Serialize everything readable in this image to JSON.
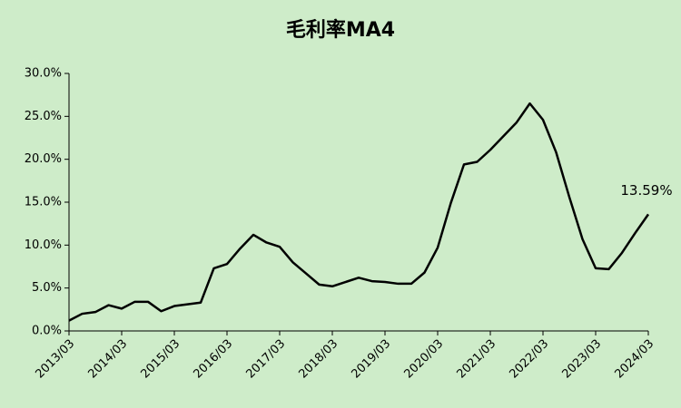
{
  "chart_data": {
    "type": "line",
    "title": "毛利率MA4",
    "categories": [
      "2013/03",
      null,
      null,
      null,
      "2014/03",
      null,
      null,
      null,
      "2015/03",
      null,
      null,
      null,
      "2016/03",
      null,
      null,
      null,
      "2017/03",
      null,
      null,
      null,
      "2018/03",
      null,
      null,
      null,
      "2019/03",
      null,
      null,
      null,
      "2020/03",
      null,
      null,
      null,
      "2021/03",
      null,
      null,
      null,
      "2022/03",
      null,
      null,
      null,
      "2023/03",
      null,
      null,
      null,
      "2024/03"
    ],
    "series": [
      {
        "color": "#000000",
        "values": [
          1.2,
          2.0,
          2.2,
          3.0,
          2.6,
          3.4,
          3.4,
          2.3,
          2.9,
          3.1,
          3.3,
          7.3,
          7.8,
          9.6,
          11.2,
          10.3,
          9.8,
          8.0,
          6.7,
          5.4,
          5.2,
          5.7,
          6.2,
          5.8,
          5.7,
          5.5,
          5.5,
          6.8,
          9.7,
          14.9,
          19.4,
          19.7,
          21.1,
          22.7,
          24.3,
          26.5,
          24.6,
          20.8,
          15.6,
          10.7,
          7.3,
          7.2,
          9.1,
          11.4,
          13.59
        ],
        "value_labels": [
          null,
          null,
          null,
          null,
          null,
          null,
          null,
          null,
          null,
          null,
          null,
          null,
          null,
          null,
          null,
          null,
          null,
          null,
          null,
          null,
          null,
          null,
          null,
          null,
          null,
          null,
          null,
          null,
          null,
          null,
          null,
          null,
          null,
          null,
          null,
          null,
          null,
          null,
          null,
          null,
          null,
          null,
          null,
          null,
          "13.59%"
        ]
      }
    ],
    "ylim": [
      0,
      30
    ],
    "yticks": [
      {
        "value": 0,
        "label": "0.0%"
      },
      {
        "value": 5,
        "label": "5.0%"
      },
      {
        "value": 10,
        "label": "10.0%"
      },
      {
        "value": 15,
        "label": "15.0%"
      },
      {
        "value": 20,
        "label": "20.0%"
      },
      {
        "value": 25,
        "label": "25.0%"
      },
      {
        "value": 30,
        "label": "30.0%"
      }
    ],
    "grid": false,
    "background": "#ceecc9"
  }
}
